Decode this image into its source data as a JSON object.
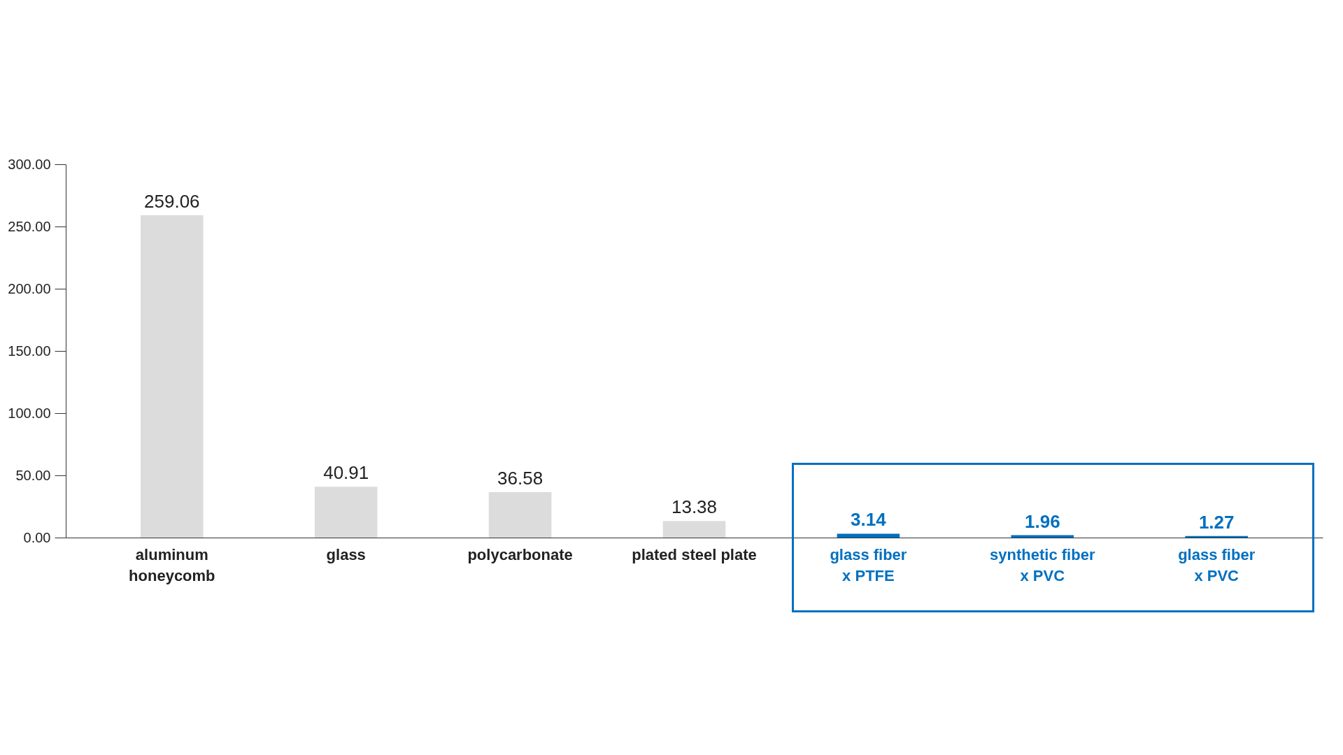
{
  "chart_data": {
    "type": "bar",
    "categories": [
      "aluminum\nhoneycomb",
      "glass",
      "polycarbonate",
      "plated steel plate",
      "glass fiber\nx PTFE",
      "synthetic fiber\nx PVC",
      "glass fiber\nx PVC"
    ],
    "values": [
      259.06,
      40.91,
      36.58,
      13.38,
      3.14,
      1.96,
      1.27
    ],
    "colors": [
      "#dcdcdc",
      "#dcdcdc",
      "#dcdcdc",
      "#dcdcdc",
      "#0070c0",
      "#0070c0",
      "#0070c0"
    ],
    "ylim": [
      0,
      300
    ],
    "yticks": [
      {
        "value": 0,
        "label": "0.00"
      },
      {
        "value": 50,
        "label": "50.00"
      },
      {
        "value": 100,
        "label": "100.00"
      },
      {
        "value": 150,
        "label": "150.00"
      },
      {
        "value": 200,
        "label": "200.00"
      },
      {
        "value": 250,
        "label": "250.00"
      },
      {
        "value": 300,
        "label": "300.00"
      }
    ],
    "data_labels": true,
    "grid": false
  }
}
